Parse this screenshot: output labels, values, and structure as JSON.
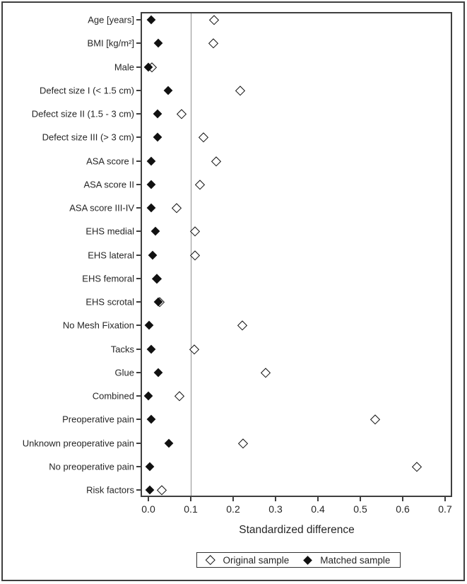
{
  "figure": {
    "background": "#ffffff",
    "border_color": "#3f3f3f"
  },
  "chart_data": {
    "type": "scatter",
    "title": "",
    "xlabel": "Standardized difference",
    "ylabel": "",
    "xlim": [
      -0.017,
      0.715
    ],
    "x_tick_values": [
      0.0,
      0.1,
      0.2,
      0.3,
      0.4,
      0.5,
      0.6,
      0.7
    ],
    "x_tick_labels": [
      "0.0",
      "0.1",
      "0.2",
      "0.3",
      "0.4",
      "0.5",
      "0.6",
      "0.7"
    ],
    "reference_line_x": 0.1,
    "grid": false,
    "legend_position": "bottom-center",
    "categories": [
      "Age [years]",
      "BMI [kg/m²]",
      "Male",
      "Defect size I (< 1.5 cm)",
      "Defect size II (1.5 - 3 cm)",
      "Defect size III (> 3 cm)",
      "ASA score I",
      "ASA score II",
      "ASA score III-IV",
      "EHS medial",
      "EHS lateral",
      "EHS femoral",
      "EHS scrotal",
      "No Mesh Fixation",
      "Tacks",
      "Glue",
      "Combined",
      "Preoperative pain",
      "Unknown preoperative pain",
      "No preoperative pain",
      "Risk factors"
    ],
    "series": [
      {
        "name": "Original sample",
        "marker": "open-diamond",
        "color": "#111111",
        "values": [
          0.155,
          0.153,
          0.008,
          0.217,
          0.079,
          0.13,
          0.16,
          0.122,
          0.066,
          0.11,
          0.11,
          0.02,
          0.027,
          0.221,
          0.108,
          0.277,
          0.073,
          0.535,
          0.223,
          0.633,
          0.032
        ]
      },
      {
        "name": "Matched sample",
        "marker": "filled-diamond",
        "color": "#111111",
        "values": [
          0.007,
          0.024,
          0.0,
          0.046,
          0.021,
          0.021,
          0.006,
          0.007,
          0.007,
          0.016,
          0.01,
          0.02,
          0.023,
          0.001,
          0.006,
          0.024,
          0.0,
          0.007,
          0.049,
          0.003,
          0.003
        ]
      }
    ],
    "colors": {
      "marker": "#111111",
      "reference_line": "#8f8f8f",
      "axis": "#3f3f3f"
    }
  }
}
